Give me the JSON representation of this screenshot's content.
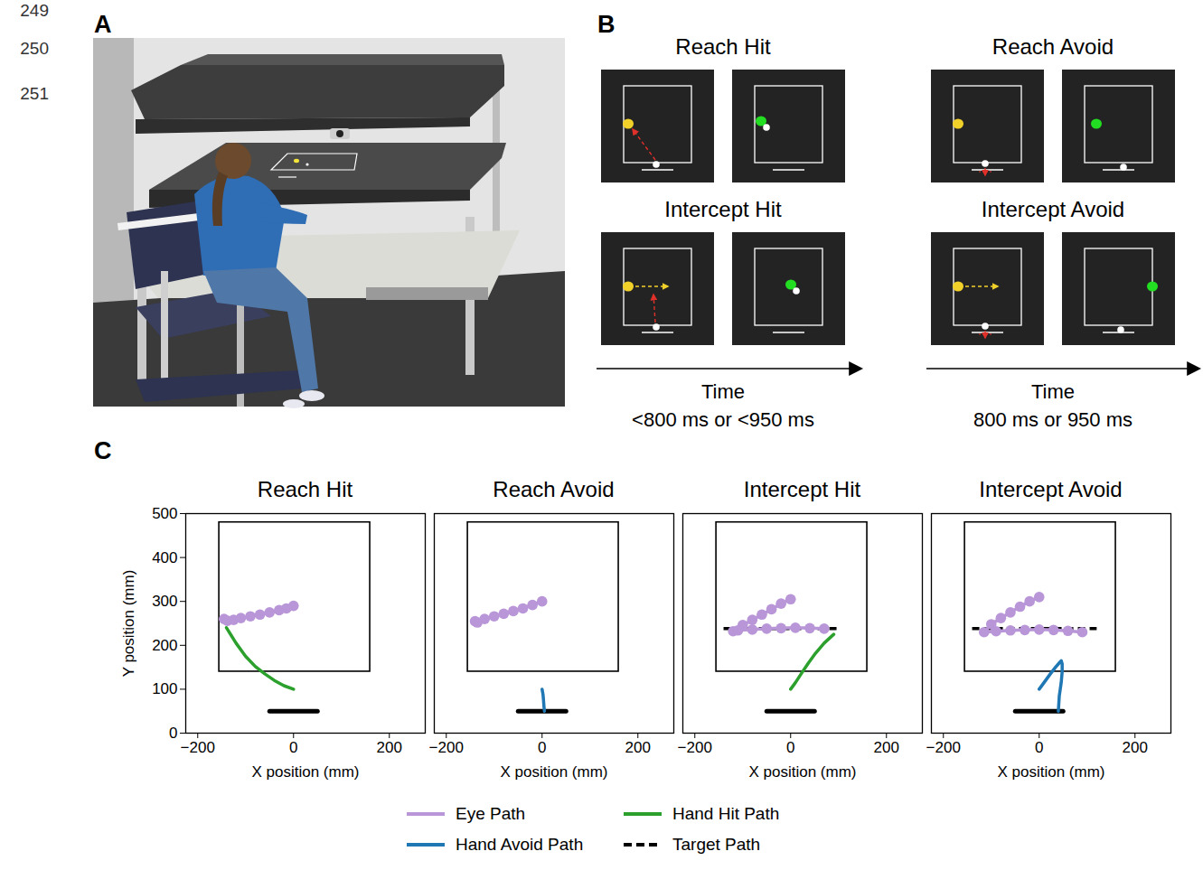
{
  "line_numbers": [
    "249",
    "250",
    "251"
  ],
  "panel_A": {
    "letter": "A"
  },
  "panel_B": {
    "letter": "B",
    "columns": [
      {
        "conditions": [
          "Reach Hit",
          "Intercept Hit"
        ],
        "time_label": "Time",
        "duration": "<800 ms or <950 ms"
      },
      {
        "conditions": [
          "Reach Avoid",
          "Intercept Avoid"
        ],
        "time_label": "Time",
        "duration": "800 ms or 950 ms"
      }
    ]
  },
  "panel_C": {
    "letter": "C"
  },
  "chart_data": [
    {
      "type": "line",
      "title": "Reach Hit",
      "xlabel": "X position (mm)",
      "ylabel": "Y position (mm)",
      "xlim": [
        -225,
        275
      ],
      "ylim": [
        0,
        500
      ],
      "xticks": [
        {
          "value": -200,
          "label": "−200"
        },
        0,
        200
      ],
      "yticks": [
        0,
        100,
        200,
        300,
        400,
        500
      ],
      "legend": "bottom",
      "workspace_box": {
        "x": [
          -155,
          160
        ],
        "y": [
          140,
          480
        ]
      },
      "start_bar": {
        "x": [
          -50,
          50
        ],
        "y": 50
      },
      "series": [
        {
          "name": "Eye Path",
          "color": "#b996d8",
          "line_style": "solid",
          "marker": "dot",
          "x": [
            -145,
            -138,
            -125,
            -110,
            -90,
            -70,
            -50,
            -30,
            -15,
            0
          ],
          "y": [
            260,
            256,
            258,
            262,
            266,
            270,
            275,
            280,
            284,
            290
          ]
        },
        {
          "name": "Hand Hit Path",
          "color": "#2ca02c",
          "line_style": "solid",
          "x": [
            0,
            -20,
            -40,
            -60,
            -80,
            -100,
            -120,
            -140
          ],
          "y": [
            100,
            108,
            120,
            135,
            152,
            175,
            205,
            240
          ]
        }
      ]
    },
    {
      "type": "line",
      "title": "Reach Avoid",
      "xlabel": "X position (mm)",
      "xlim": [
        -225,
        275
      ],
      "ylim": [
        0,
        500
      ],
      "xticks": [
        {
          "value": -200,
          "label": "−200"
        },
        0,
        200
      ],
      "tick_labels": "x",
      "legend": "bottom",
      "workspace_box": {
        "x": [
          -155,
          160
        ],
        "y": [
          140,
          480
        ]
      },
      "start_bar": {
        "x": [
          -50,
          50
        ],
        "y": 50
      },
      "series": [
        {
          "name": "Eye Path",
          "color": "#b996d8",
          "line_style": "solid",
          "marker": "dot",
          "x": [
            -140,
            -135,
            -120,
            -100,
            -80,
            -60,
            -40,
            -20,
            0
          ],
          "y": [
            255,
            252,
            260,
            266,
            272,
            278,
            284,
            292,
            300
          ]
        },
        {
          "name": "Hand Avoid Path",
          "color": "#1f77b4",
          "line_style": "solid",
          "x": [
            0,
            2,
            3,
            4,
            5
          ],
          "y": [
            100,
            88,
            75,
            60,
            50
          ]
        }
      ]
    },
    {
      "type": "line",
      "title": "Intercept Hit",
      "xlabel": "X position (mm)",
      "xlim": [
        -225,
        275
      ],
      "ylim": [
        0,
        500
      ],
      "xticks": [
        {
          "value": -200,
          "label": "−200"
        },
        0,
        200
      ],
      "tick_labels": "x",
      "legend": "bottom",
      "workspace_box": {
        "x": [
          -155,
          160
        ],
        "y": [
          140,
          480
        ]
      },
      "start_bar": {
        "x": [
          -50,
          50
        ],
        "y": 50
      },
      "series": [
        {
          "name": "Target Path",
          "color": "#000000",
          "line_style": "dashed",
          "x": [
            -140,
            100
          ],
          "y": [
            238,
            238
          ]
        },
        {
          "name": "Eye Path",
          "color": "#b996d8",
          "line_style": "solid",
          "marker": "dot",
          "x": [
            0,
            -20,
            -40,
            -60,
            -80,
            -100,
            -120,
            -110,
            -80,
            -50,
            -20,
            10,
            40,
            70
          ],
          "y": [
            305,
            295,
            282,
            270,
            258,
            246,
            232,
            234,
            236,
            238,
            239,
            240,
            239,
            238
          ]
        },
        {
          "name": "Hand Hit Path",
          "color": "#2ca02c",
          "line_style": "solid",
          "x": [
            0,
            10,
            22,
            36,
            52,
            70,
            90
          ],
          "y": [
            100,
            115,
            135,
            158,
            182,
            205,
            225
          ]
        }
      ]
    },
    {
      "type": "line",
      "title": "Intercept Avoid",
      "xlabel": "X position (mm)",
      "xlim": [
        -225,
        275
      ],
      "ylim": [
        0,
        500
      ],
      "xticks": [
        {
          "value": -200,
          "label": "−200"
        },
        0,
        200
      ],
      "tick_labels": "x",
      "legend": "bottom",
      "workspace_box": {
        "x": [
          -155,
          160
        ],
        "y": [
          140,
          480
        ]
      },
      "start_bar": {
        "x": [
          -50,
          50
        ],
        "y": 50
      },
      "series": [
        {
          "name": "Target Path",
          "color": "#000000",
          "line_style": "dashed",
          "x": [
            -140,
            120
          ],
          "y": [
            238,
            238
          ]
        },
        {
          "name": "Eye Path",
          "color": "#b996d8",
          "line_style": "solid",
          "marker": "dot",
          "x": [
            0,
            -20,
            -40,
            -60,
            -80,
            -100,
            -115,
            -90,
            -60,
            -30,
            0,
            30,
            60,
            90
          ],
          "y": [
            310,
            300,
            288,
            275,
            262,
            248,
            230,
            232,
            234,
            235,
            236,
            235,
            233,
            230
          ]
        },
        {
          "name": "Hand Avoid Path",
          "color": "#1f77b4",
          "line_style": "solid",
          "x": [
            0,
            10,
            22,
            34,
            42,
            46,
            48,
            48,
            46,
            42,
            40
          ],
          "y": [
            100,
            115,
            133,
            150,
            160,
            165,
            158,
            140,
            115,
            85,
            50
          ]
        }
      ]
    }
  ]
}
